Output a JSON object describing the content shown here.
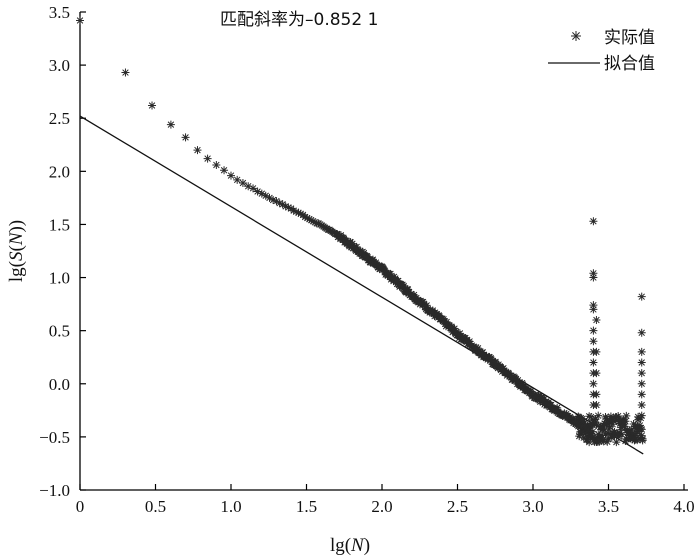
{
  "chart_data": {
    "type": "scatter",
    "title": "匹配斜率为–0.852 1",
    "xlabel_prefix": "lg(",
    "xlabel_var": "N",
    "xlabel_suffix": ")",
    "ylabel_prefix": "lg(",
    "ylabel_var1": "S",
    "ylabel_mid": "(",
    "ylabel_var2": "N",
    "ylabel_suffix": "))",
    "xlim": [
      0,
      4.0
    ],
    "ylim": [
      -1.0,
      3.5
    ],
    "x_ticks": [
      "0",
      "0.5",
      "1.0",
      "1.5",
      "2.0",
      "2.5",
      "3.0",
      "3.5",
      "4.0"
    ],
    "y_ticks": [
      "3.5",
      "3.0",
      "2.5",
      "2.0",
      "1.5",
      "1.0",
      "0.5",
      "0.0",
      "−0.5",
      "−1.0"
    ],
    "grid": false,
    "legend_position": "top-right",
    "series": [
      {
        "name": "实际值",
        "marker": "asterisk",
        "x": [
          0,
          0.301,
          0.477,
          0.602,
          0.699,
          0.778,
          0.845,
          0.903,
          0.954,
          1.0,
          1.041,
          1.079,
          1.114,
          1.146,
          1.176,
          1.204,
          1.23,
          1.255,
          1.279,
          1.301,
          1.322,
          1.342,
          1.362,
          1.38,
          1.398,
          1.415,
          1.431,
          1.447,
          1.462,
          1.477,
          1.491,
          1.505,
          1.519,
          1.531,
          1.544,
          1.556,
          1.568,
          1.58,
          1.591,
          1.602,
          1.613,
          1.623,
          1.633,
          1.643,
          1.653,
          1.663,
          1.672,
          1.681,
          1.69,
          1.699
        ],
        "y": [
          3.42,
          2.93,
          2.62,
          2.44,
          2.32,
          2.2,
          2.12,
          2.06,
          2.01,
          1.96,
          1.92,
          1.89,
          1.86,
          1.84,
          1.81,
          1.79,
          1.77,
          1.75,
          1.73,
          1.72,
          1.7,
          1.69,
          1.67,
          1.66,
          1.65,
          1.63,
          1.62,
          1.61,
          1.6,
          1.59,
          1.57,
          1.56,
          1.55,
          1.54,
          1.53,
          1.52,
          1.51,
          1.51,
          1.5,
          1.49,
          1.48,
          1.47,
          1.46,
          1.45,
          1.45,
          1.44,
          1.43,
          1.42,
          1.41,
          1.41
        ],
        "dense_trend": {
          "x": [
            1.7,
            2.0,
            2.5,
            3.0,
            3.3,
            3.38
          ],
          "y": [
            1.41,
            1.08,
            0.47,
            -0.1,
            -0.38,
            -0.42
          ],
          "spread": 0.05,
          "step": 0.004
        },
        "noise_band": {
          "x_range": [
            3.3,
            3.73
          ],
          "y_range": [
            -0.55,
            -0.3
          ],
          "step": 0.006
        },
        "spike_columns": [
          {
            "x": 3.4,
            "y": [
              1.53,
              1.04,
              1.0,
              0.74,
              0.7,
              0.5,
              0.4,
              0.3,
              0.2,
              0.1,
              0.0,
              -0.1,
              -0.2
            ]
          },
          {
            "x": 3.42,
            "y": [
              0.6,
              0.3,
              0.1,
              -0.1,
              -0.2
            ]
          },
          {
            "x": 3.72,
            "y": [
              0.82,
              0.48,
              0.3,
              0.2,
              0.1,
              0.0,
              -0.1,
              -0.2,
              -0.3
            ]
          }
        ]
      },
      {
        "name": "拟合值",
        "marker": "line",
        "x": [
          0,
          3.73
        ],
        "y": [
          2.52,
          -0.66
        ]
      }
    ]
  }
}
